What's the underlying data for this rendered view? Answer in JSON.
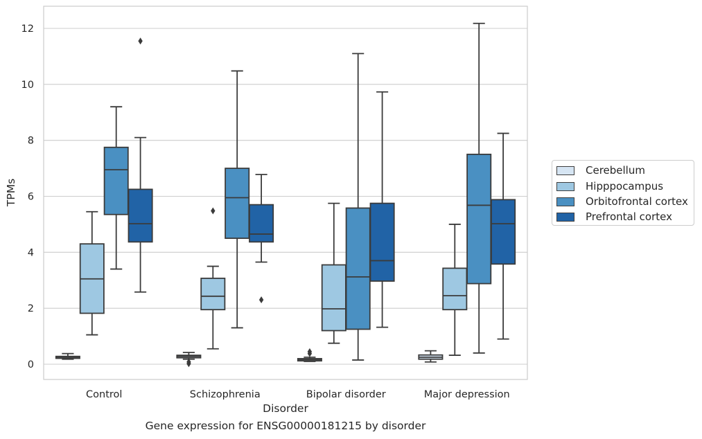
{
  "chart_data": {
    "type": "box",
    "title": "",
    "caption": "Gene expression for ENSG00000181215 by disorder",
    "xlabel": "Disorder",
    "ylabel": "TPMs",
    "ylim": [
      -0.5,
      12.75
    ],
    "yticks": [
      0,
      2,
      4,
      6,
      8,
      10,
      12
    ],
    "grid": "horizontal",
    "legend_position": "center-right, outside plot",
    "categories": [
      "Control",
      "Schizophrenia",
      "Bipolar disorder",
      "Major depression"
    ],
    "series": [
      {
        "name": "Cerebellum",
        "color": "#d6e5f3",
        "boxes": [
          {
            "whislo": 0.18,
            "q1": 0.21,
            "med": 0.25,
            "q3": 0.28,
            "whishi": 0.38,
            "fliers": []
          },
          {
            "whislo": 0.18,
            "q1": 0.23,
            "med": 0.28,
            "q3": 0.32,
            "whishi": 0.42,
            "fliers": [
              0.08,
              0.02
            ]
          },
          {
            "whislo": 0.1,
            "q1": 0.12,
            "med": 0.16,
            "q3": 0.2,
            "whishi": 0.25,
            "fliers": [
              0.45,
              0.38
            ]
          },
          {
            "whislo": 0.08,
            "q1": 0.18,
            "med": 0.25,
            "q3": 0.33,
            "whishi": 0.48,
            "fliers": []
          }
        ]
      },
      {
        "name": "Hipppocampus",
        "color": "#9ec8e2",
        "boxes": [
          {
            "whislo": 1.05,
            "q1": 1.82,
            "med": 3.05,
            "q3": 4.3,
            "whishi": 5.45,
            "fliers": []
          },
          {
            "whislo": 0.55,
            "q1": 1.95,
            "med": 2.43,
            "q3": 3.07,
            "whishi": 3.5,
            "fliers": [
              5.48
            ]
          },
          {
            "whislo": 0.75,
            "q1": 1.2,
            "med": 1.98,
            "q3": 3.55,
            "whishi": 5.75,
            "fliers": []
          },
          {
            "whislo": 0.32,
            "q1": 1.95,
            "med": 2.45,
            "q3": 3.43,
            "whishi": 5.0,
            "fliers": []
          }
        ]
      },
      {
        "name": "Orbitofrontal cortex",
        "color": "#4a90c2",
        "boxes": [
          {
            "whislo": 3.4,
            "q1": 5.35,
            "med": 6.95,
            "q3": 7.75,
            "whishi": 9.2,
            "fliers": []
          },
          {
            "whislo": 1.3,
            "q1": 4.5,
            "med": 5.95,
            "q3": 7.0,
            "whishi": 10.48,
            "fliers": []
          },
          {
            "whislo": 0.15,
            "q1": 1.25,
            "med": 3.12,
            "q3": 5.58,
            "whishi": 11.1,
            "fliers": []
          },
          {
            "whislo": 0.4,
            "q1": 2.88,
            "med": 5.68,
            "q3": 7.5,
            "whishi": 12.18,
            "fliers": []
          }
        ]
      },
      {
        "name": "Prefrontal cortex",
        "color": "#2163a6",
        "boxes": [
          {
            "whislo": 2.58,
            "q1": 4.37,
            "med": 5.02,
            "q3": 6.25,
            "whishi": 8.1,
            "fliers": [
              11.55
            ]
          },
          {
            "whislo": 3.65,
            "q1": 4.37,
            "med": 4.65,
            "q3": 5.7,
            "whishi": 6.78,
            "fliers": [
              2.3
            ]
          },
          {
            "whislo": 1.32,
            "q1": 2.97,
            "med": 3.7,
            "q3": 5.75,
            "whishi": 9.73,
            "fliers": []
          },
          {
            "whislo": 0.9,
            "q1": 3.58,
            "med": 5.02,
            "q3": 5.88,
            "whishi": 8.25,
            "fliers": []
          }
        ]
      }
    ]
  }
}
